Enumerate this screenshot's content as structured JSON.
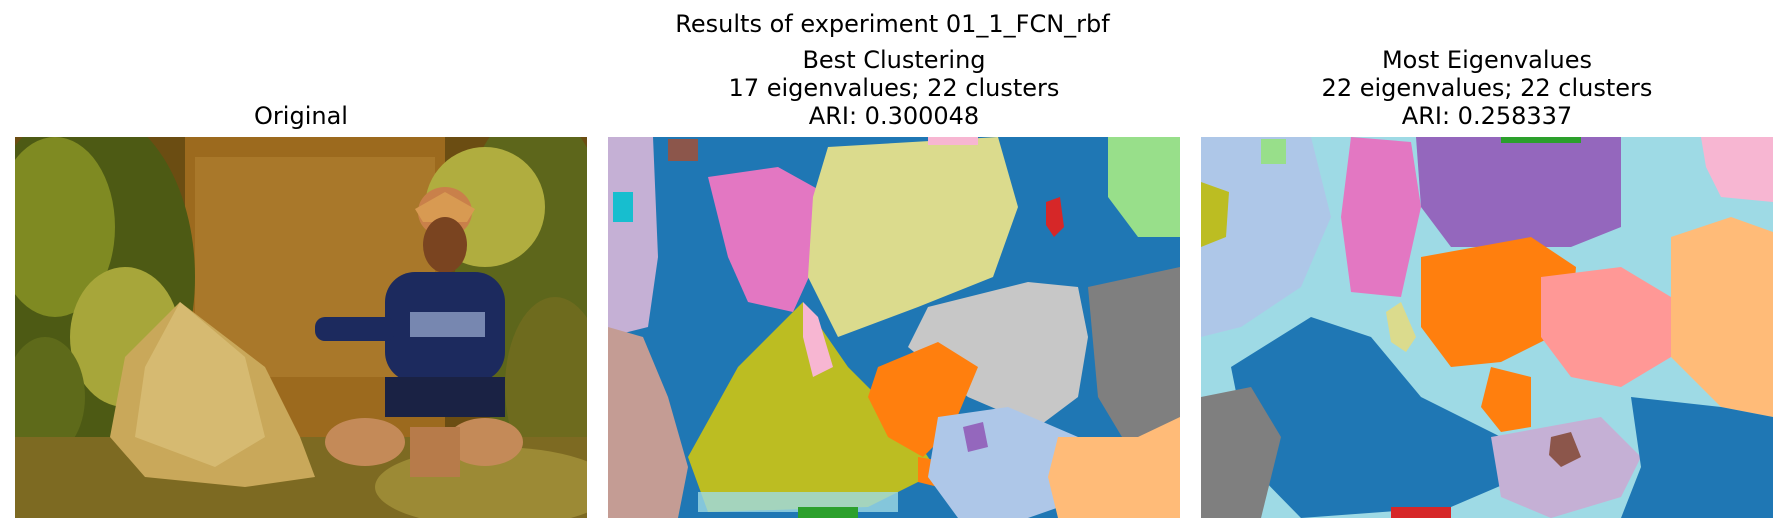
{
  "figure": {
    "suptitle": "Results of experiment 01_1_FCN_rbf"
  },
  "panels": [
    {
      "title_lines": [
        "Original"
      ],
      "image": "photo of a boy in a knit hat and blue sweater crouching next to a conical woven bamboo basket, green foliage and mud wall behind"
    },
    {
      "title_lines": [
        "Best Clustering",
        "17 eigenvalues; 22 clusters",
        "ARI: 0.300048"
      ],
      "image": "segmentation map with tab20 cluster colors"
    },
    {
      "title_lines": [
        "Most Eigenvalues",
        "22 eigenvalues; 22 clusters",
        "ARI: 0.258337"
      ],
      "image": "segmentation map with tab20 cluster colors"
    }
  ],
  "colors": {
    "tab_blue": "#1f77b4",
    "tab_lightblue": "#aec7e8",
    "tab_orange": "#ff7f0e",
    "tab_lightorange": "#ffbb78",
    "tab_green": "#2ca02c",
    "tab_lightgreen": "#98df8a",
    "tab_red": "#d62728",
    "tab_pink": "#ff9896",
    "tab_purple": "#9467bd",
    "tab_lavender": "#c5b0d5",
    "tab_brown": "#8c564b",
    "tab_tan": "#c49c94",
    "tab_magenta": "#e377c2",
    "tab_lightmagenta": "#f7b6d2",
    "tab_gray": "#7f7f7f",
    "tab_lightgray": "#c7c7c7",
    "tab_olive": "#bcbd22",
    "tab_khaki": "#dbdb8d",
    "tab_cyan": "#17becf",
    "tab_lightcyan": "#9edae5"
  }
}
